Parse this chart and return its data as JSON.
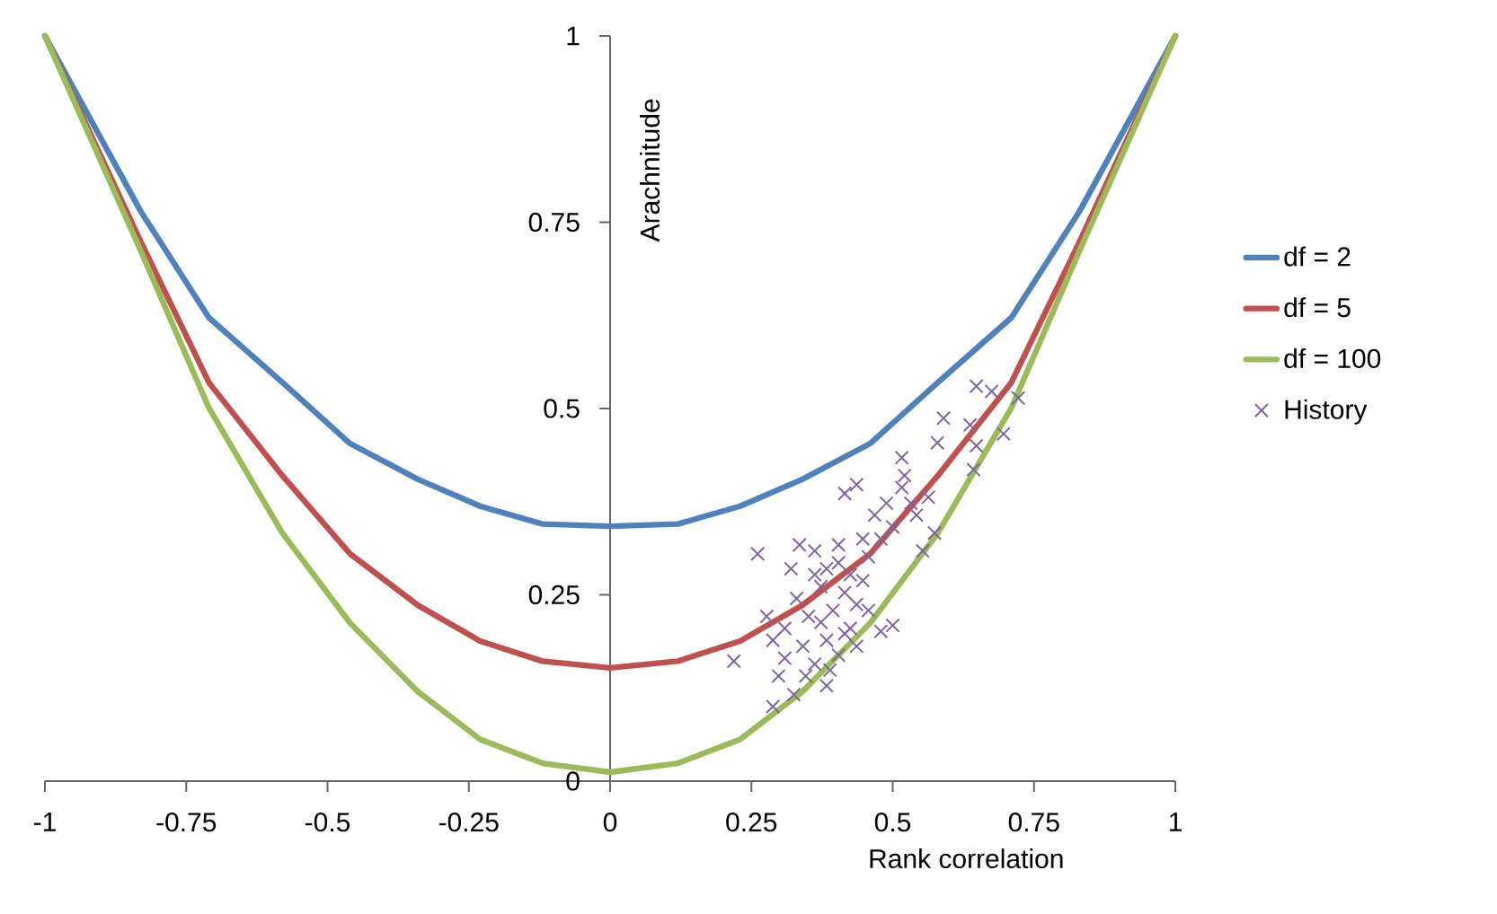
{
  "chart_data": {
    "type": "line",
    "xlabel": "Rank correlation",
    "ylabel": "Arachnitude",
    "xlim": [
      -1,
      1
    ],
    "ylim": [
      0,
      1
    ],
    "xticks": [
      -1,
      -0.75,
      -0.5,
      -0.25,
      0,
      0.25,
      0.5,
      0.75,
      1
    ],
    "yticks": [
      0,
      0.25,
      0.5,
      0.75,
      1
    ],
    "grid": false,
    "legend": "right",
    "line_style": "solid",
    "series": [
      {
        "name": "df = 2",
        "marker": "none",
        "color": "#4f81bd",
        "x": [
          -1,
          -0.83,
          -0.71,
          -0.58,
          -0.46,
          -0.34,
          -0.23,
          -0.12,
          0,
          0.12,
          0.23,
          0.34,
          0.46,
          0.58,
          0.71,
          0.83,
          1
        ],
        "values": [
          1,
          0.764,
          0.622,
          0.535,
          0.453,
          0.405,
          0.369,
          0.345,
          0.342,
          0.345,
          0.369,
          0.405,
          0.453,
          0.535,
          0.622,
          0.764,
          1
        ]
      },
      {
        "name": "df = 5",
        "marker": "none",
        "color": "#c0504d",
        "x": [
          -1,
          -0.83,
          -0.71,
          -0.58,
          -0.46,
          -0.34,
          -0.23,
          -0.12,
          0,
          0.12,
          0.23,
          0.34,
          0.46,
          0.58,
          0.71,
          0.83,
          1
        ],
        "values": [
          1,
          0.723,
          0.535,
          0.41,
          0.305,
          0.236,
          0.188,
          0.161,
          0.152,
          0.161,
          0.188,
          0.236,
          0.305,
          0.41,
          0.535,
          0.723,
          1
        ]
      },
      {
        "name": "df = 100",
        "marker": "none",
        "color": "#9bbb59",
        "x": [
          -1,
          -0.83,
          -0.71,
          -0.58,
          -0.46,
          -0.34,
          -0.23,
          -0.12,
          0,
          0.12,
          0.23,
          0.34,
          0.46,
          0.58,
          0.71,
          0.83,
          1
        ],
        "values": [
          1,
          0.711,
          0.501,
          0.333,
          0.212,
          0.12,
          0.056,
          0.024,
          0.012,
          0.024,
          0.056,
          0.12,
          0.212,
          0.333,
          0.501,
          0.711,
          1
        ]
      },
      {
        "name": "History",
        "type": "scatter",
        "marker": "cross",
        "color": "#8064a2",
        "x": [
          0.261,
          0.219,
          0.288,
          0.648,
          0.675,
          0.722,
          0.59,
          0.637,
          0.696,
          0.579,
          0.648,
          0.516,
          0.643,
          0.521,
          0.415,
          0.436,
          0.563,
          0.516,
          0.542,
          0.574,
          0.335,
          0.362,
          0.553,
          0.5,
          0.468,
          0.32,
          0.362,
          0.404,
          0.457,
          0.479,
          0.277,
          0.33,
          0.373,
          0.415,
          0.447,
          0.309,
          0.351,
          0.394,
          0.436,
          0.5,
          0.479,
          0.288,
          0.341,
          0.383,
          0.425,
          0.309,
          0.362,
          0.404,
          0.436,
          0.298,
          0.346,
          0.383,
          0.325,
          0.389,
          0.415,
          0.457,
          0.373,
          0.532,
          0.489,
          0.447,
          0.404,
          0.383,
          0.425
        ],
        "values": [
          0.305,
          0.161,
          0.1,
          0.53,
          0.523,
          0.514,
          0.487,
          0.478,
          0.466,
          0.454,
          0.45,
          0.434,
          0.418,
          0.41,
          0.386,
          0.398,
          0.381,
          0.394,
          0.357,
          0.333,
          0.317,
          0.309,
          0.309,
          0.341,
          0.357,
          0.285,
          0.277,
          0.293,
          0.301,
          0.325,
          0.221,
          0.245,
          0.261,
          0.253,
          0.269,
          0.205,
          0.221,
          0.229,
          0.237,
          0.209,
          0.201,
          0.189,
          0.181,
          0.189,
          0.205,
          0.165,
          0.157,
          0.169,
          0.181,
          0.141,
          0.141,
          0.128,
          0.116,
          0.149,
          0.198,
          0.229,
          0.213,
          0.373,
          0.373,
          0.325,
          0.317,
          0.285,
          0.277
        ]
      }
    ]
  }
}
